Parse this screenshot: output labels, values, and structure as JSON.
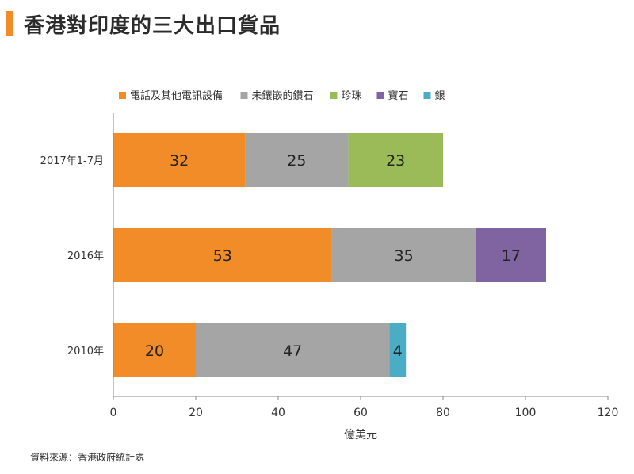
{
  "page": {
    "title": "香港對印度的三大出口貨品",
    "source": "資料來源：香港政府統計處"
  },
  "colors": {
    "accent": "#f28c28"
  },
  "chart_data": {
    "type": "bar",
    "orientation": "horizontal",
    "stacked": true,
    "categories": [
      "2017年1-7月",
      "2016年",
      "2010年"
    ],
    "series": [
      {
        "name": "電話及其他電訊設備",
        "color": "#f28c28",
        "values": [
          32,
          53,
          20
        ]
      },
      {
        "name": "未鑲嵌的鑽石",
        "color": "#a5a5a5",
        "values": [
          25,
          35,
          47
        ]
      },
      {
        "name": "珍珠",
        "color": "#9bbb59",
        "values": [
          23,
          null,
          null
        ]
      },
      {
        "name": "寶石",
        "color": "#8064a2",
        "values": [
          null,
          17,
          null
        ]
      },
      {
        "name": "銀",
        "color": "#4bacc6",
        "values": [
          null,
          null,
          4
        ]
      }
    ],
    "xlabel": "億美元",
    "ylabel": "",
    "xlim": [
      0,
      120
    ],
    "xticks": [
      0,
      20,
      40,
      60,
      80,
      100,
      120
    ],
    "grid": false,
    "legend_position": "top"
  }
}
